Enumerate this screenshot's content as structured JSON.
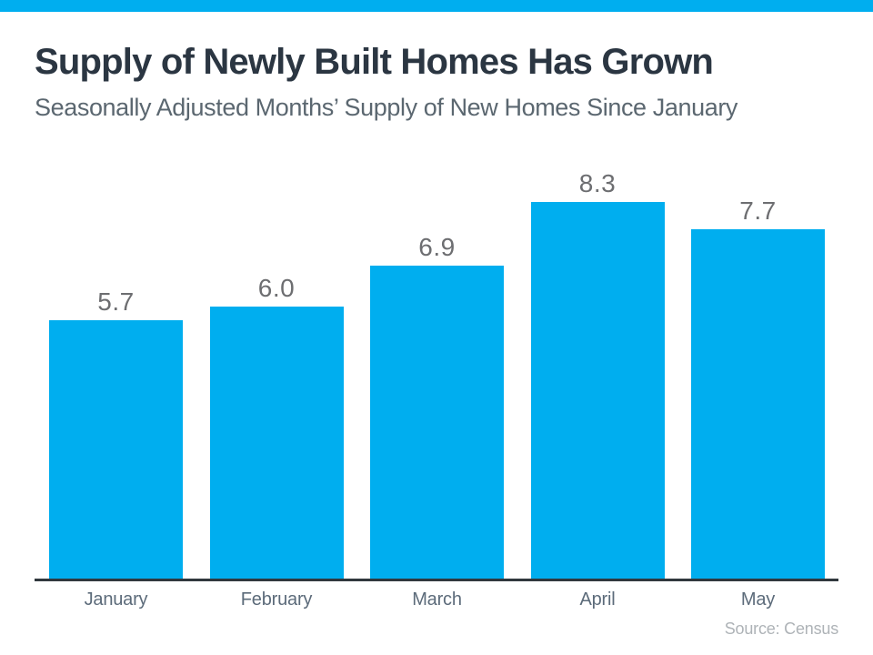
{
  "page": {
    "accent_color": "#00AEEF",
    "background_color": "#FFFFFF"
  },
  "header": {
    "title": "Supply of Newly Built Homes Has Grown",
    "subtitle": "Seasonally Adjusted Months’ Supply of New Homes Since January"
  },
  "chart_data": {
    "type": "bar",
    "title": "Supply of Newly Built Homes Has Grown",
    "subtitle": "Seasonally Adjusted Months’ Supply of New Homes Since January",
    "categories": [
      "January",
      "February",
      "March",
      "April",
      "May"
    ],
    "values": [
      5.7,
      6.0,
      6.9,
      8.3,
      7.7
    ],
    "value_labels": [
      "5.7",
      "6.0",
      "6.9",
      "8.3",
      "7.7"
    ],
    "xlabel": "",
    "ylabel": "",
    "ylim": [
      0,
      9
    ],
    "grid": false,
    "legend": false,
    "bar_color": "#00AEEF",
    "value_label_color": "#6D6E71",
    "axis_tick_label_color": "#5C6B7A",
    "axis_line_color": "#31383E",
    "source": "Source: Census"
  },
  "footer": {
    "source_label": "Source: Census"
  }
}
